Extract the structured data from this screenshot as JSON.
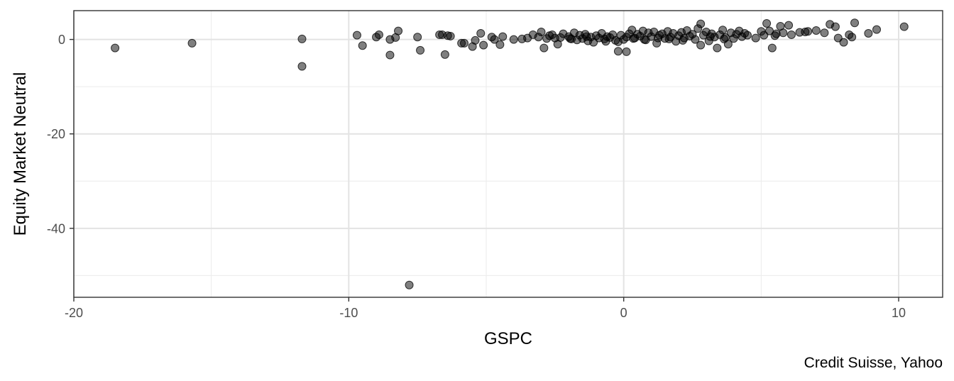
{
  "chart_data": {
    "type": "scatter",
    "xlabel": "GSPC",
    "ylabel": "Equity Market Neutral",
    "caption": "Credit Suisse, Yahoo",
    "xlim": [
      -20,
      11.6
    ],
    "ylim": [
      -54.6,
      6.1
    ],
    "x_ticks": [
      -20,
      -10,
      0,
      10
    ],
    "x_tick_labels": [
      "-20",
      "-10",
      "0",
      "10"
    ],
    "y_ticks": [
      0,
      -20,
      -40
    ],
    "y_tick_labels": [
      "0",
      "-20",
      "-40"
    ],
    "x_minor_ticks": [
      -15,
      -5,
      5
    ],
    "y_minor_ticks": [
      -10,
      -30,
      -50
    ],
    "grid": true,
    "point_color": "#000000",
    "point_opacity": 0.5,
    "points": [
      [
        -18.5,
        -1.8
      ],
      [
        -15.7,
        -0.8
      ],
      [
        -11.7,
        0.1
      ],
      [
        -11.7,
        -5.7
      ],
      [
        -7.8,
        -52.0
      ],
      [
        -9.7,
        0.9
      ],
      [
        -9.5,
        -1.3
      ],
      [
        -9.0,
        0.5
      ],
      [
        -8.9,
        1.0
      ],
      [
        -8.5,
        -3.3
      ],
      [
        -8.5,
        0.0
      ],
      [
        -8.3,
        0.4
      ],
      [
        -8.2,
        1.8
      ],
      [
        -7.5,
        0.5
      ],
      [
        -7.4,
        -2.3
      ],
      [
        -6.7,
        1.0
      ],
      [
        -6.6,
        1.0
      ],
      [
        -6.5,
        -3.2
      ],
      [
        -6.4,
        0.8
      ],
      [
        -6.3,
        0.7
      ],
      [
        -5.9,
        -0.8
      ],
      [
        -5.8,
        -0.8
      ],
      [
        -5.5,
        -1.5
      ],
      [
        -5.4,
        -0.2
      ],
      [
        -5.2,
        1.3
      ],
      [
        -5.1,
        -1.2
      ],
      [
        -4.8,
        0.5
      ],
      [
        -4.7,
        0.0
      ],
      [
        -4.5,
        -1.1
      ],
      [
        -4.4,
        0.6
      ],
      [
        -4.0,
        0.0
      ],
      [
        -3.7,
        0.1
      ],
      [
        -3.5,
        0.3
      ],
      [
        -3.3,
        1.0
      ],
      [
        -3.1,
        0.5
      ],
      [
        -3.0,
        1.6
      ],
      [
        -2.9,
        -1.8
      ],
      [
        -2.8,
        0.2
      ],
      [
        -2.7,
        0.8
      ],
      [
        -2.5,
        0.3
      ],
      [
        -2.4,
        -1.0
      ],
      [
        -2.3,
        0.4
      ],
      [
        -2.2,
        1.2
      ],
      [
        -2.0,
        0.6
      ],
      [
        -1.9,
        0.1
      ],
      [
        -1.8,
        1.4
      ],
      [
        -1.7,
        -0.1
      ],
      [
        -1.6,
        0.9
      ],
      [
        -1.5,
        0.2
      ],
      [
        -1.4,
        1.1
      ],
      [
        -1.3,
        -0.3
      ],
      [
        -1.2,
        0.5
      ],
      [
        -1.1,
        -0.6
      ],
      [
        -1.0,
        0.8
      ],
      [
        -0.9,
        0.3
      ],
      [
        -0.8,
        1.3
      ],
      [
        -0.7,
        0.1
      ],
      [
        -0.6,
        0.6
      ],
      [
        -0.5,
        0.4
      ],
      [
        -0.4,
        1.0
      ],
      [
        -0.3,
        -0.2
      ],
      [
        -0.2,
        -0.5
      ],
      [
        -0.1,
        0.9
      ],
      [
        0.0,
        0.0
      ],
      [
        -0.2,
        -2.5
      ],
      [
        0.1,
        0.5
      ],
      [
        0.1,
        -2.6
      ],
      [
        0.2,
        1.2
      ],
      [
        0.3,
        2.0
      ],
      [
        0.4,
        0.3
      ],
      [
        0.5,
        1.1
      ],
      [
        0.6,
        0.7
      ],
      [
        0.7,
        1.8
      ],
      [
        0.8,
        -0.1
      ],
      [
        0.9,
        1.4
      ],
      [
        1.0,
        0.6
      ],
      [
        1.1,
        1.6
      ],
      [
        1.2,
        -0.8
      ],
      [
        1.3,
        0.9
      ],
      [
        1.4,
        1.2
      ],
      [
        1.5,
        0.2
      ],
      [
        1.6,
        1.7
      ],
      [
        1.7,
        0.5
      ],
      [
        1.8,
        1.3
      ],
      [
        1.9,
        -0.4
      ],
      [
        2.0,
        0.8
      ],
      [
        2.1,
        1.5
      ],
      [
        2.2,
        0.3
      ],
      [
        2.3,
        1.9
      ],
      [
        2.4,
        0.7
      ],
      [
        2.5,
        1.1
      ],
      [
        2.6,
        0.0
      ],
      [
        2.7,
        2.3
      ],
      [
        2.8,
        3.3
      ],
      [
        2.8,
        -1.2
      ],
      [
        2.9,
        0.9
      ],
      [
        3.0,
        1.6
      ],
      [
        3.1,
        -0.3
      ],
      [
        3.2,
        1.2
      ],
      [
        3.3,
        0.5
      ],
      [
        3.4,
        -1.8
      ],
      [
        3.5,
        1.0
      ],
      [
        3.6,
        2.0
      ],
      [
        3.7,
        0.4
      ],
      [
        3.8,
        -1.0
      ],
      [
        3.9,
        1.4
      ],
      [
        4.0,
        0.2
      ],
      [
        4.1,
        1.1
      ],
      [
        4.3,
        0.6
      ],
      [
        4.4,
        1.3
      ],
      [
        4.5,
        0.9
      ],
      [
        4.8,
        0.3
      ],
      [
        5.0,
        1.7
      ],
      [
        5.1,
        0.9
      ],
      [
        5.2,
        3.4
      ],
      [
        5.3,
        1.8
      ],
      [
        5.4,
        -1.8
      ],
      [
        5.5,
        0.8
      ],
      [
        5.7,
        2.8
      ],
      [
        5.8,
        1.4
      ],
      [
        6.0,
        3.0
      ],
      [
        6.1,
        1.0
      ],
      [
        6.4,
        1.5
      ],
      [
        6.7,
        1.7
      ],
      [
        7.0,
        1.9
      ],
      [
        7.3,
        1.4
      ],
      [
        7.5,
        3.2
      ],
      [
        7.7,
        2.7
      ],
      [
        7.8,
        0.3
      ],
      [
        8.0,
        -0.6
      ],
      [
        8.2,
        1.0
      ],
      [
        8.3,
        0.5
      ],
      [
        8.4,
        3.5
      ],
      [
        8.9,
        1.3
      ],
      [
        9.2,
        2.1
      ],
      [
        10.2,
        2.7
      ],
      [
        -2.6,
        1.0
      ],
      [
        -1.95,
        0.2
      ],
      [
        -1.35,
        0.6
      ],
      [
        -0.65,
        -0.4
      ],
      [
        0.35,
        0.2
      ],
      [
        0.75,
        0.0
      ],
      [
        1.25,
        0.3
      ],
      [
        1.65,
        0.1
      ],
      [
        2.15,
        -0.2
      ],
      [
        3.15,
        0.6
      ],
      [
        3.65,
        0.1
      ],
      [
        4.2,
        1.8
      ],
      [
        5.55,
        1.2
      ],
      [
        6.6,
        1.6
      ]
    ]
  }
}
